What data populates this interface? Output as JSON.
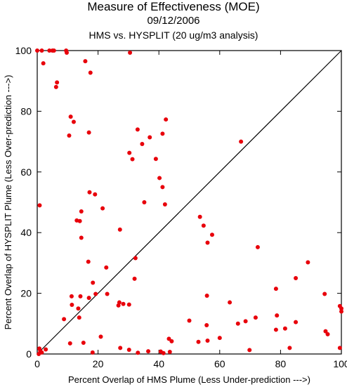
{
  "chart_data": {
    "type": "scatter",
    "title": "Measure of Effectiveness (MOE)",
    "subtitle": "09/12/2006",
    "subtitle2": "HMS vs. HYSPLIT  (20 ug/m3 analysis)",
    "xlabel": "Percent Overlap of HMS Plume (Less Under-prediction --->)",
    "ylabel": "Percent Overlap of HYSPLIT Plume (Less Over-prediction --->)",
    "xlim": [
      0,
      100
    ],
    "ylim": [
      0,
      100
    ],
    "xticks": [
      0,
      20,
      40,
      60,
      80,
      100
    ],
    "yticks": [
      0,
      20,
      40,
      60,
      80,
      100
    ],
    "xtick_labels": [
      "0",
      "20",
      "40",
      "60",
      "80",
      "100"
    ],
    "ytick_labels": [
      "0",
      "20",
      "40",
      "60",
      "80",
      "100"
    ],
    "grid": false,
    "diagonal_line": true,
    "marker_color": "#e8000b",
    "points": [
      [
        0,
        100
      ],
      [
        1.5,
        100
      ],
      [
        4,
        100
      ],
      [
        5,
        100
      ],
      [
        5.5,
        100
      ],
      [
        9.5,
        100
      ],
      [
        9.7,
        99.3
      ],
      [
        30.5,
        99.3
      ],
      [
        2,
        95.8
      ],
      [
        15.8,
        96.5
      ],
      [
        17.5,
        92.7
      ],
      [
        6.5,
        89.5
      ],
      [
        6.2,
        88
      ],
      [
        11,
        78.2
      ],
      [
        12,
        76.5
      ],
      [
        10.5,
        72
      ],
      [
        17,
        73
      ],
      [
        33,
        74
      ],
      [
        42.3,
        77.3
      ],
      [
        37,
        71.4
      ],
      [
        41.2,
        72.6
      ],
      [
        34.5,
        69.2
      ],
      [
        39,
        64.3
      ],
      [
        30.3,
        66.3
      ],
      [
        31.3,
        64.2
      ],
      [
        67,
        70
      ],
      [
        40.2,
        58
      ],
      [
        41.2,
        55
      ],
      [
        17.2,
        53.3
      ],
      [
        19,
        52.6
      ],
      [
        0.8,
        49
      ],
      [
        35.2,
        50
      ],
      [
        42,
        49.3
      ],
      [
        21.5,
        48
      ],
      [
        14.5,
        47
      ],
      [
        13,
        44
      ],
      [
        14,
        43.8
      ],
      [
        53.5,
        45.2
      ],
      [
        54.7,
        42.3
      ],
      [
        14.5,
        38.3
      ],
      [
        27.2,
        41
      ],
      [
        57.5,
        39.3
      ],
      [
        56,
        36.7
      ],
      [
        72.5,
        35.2
      ],
      [
        32.3,
        31.6
      ],
      [
        16.8,
        30.4
      ],
      [
        22.7,
        28.5
      ],
      [
        89,
        30.2
      ],
      [
        18.3,
        23.5
      ],
      [
        32,
        24.8
      ],
      [
        85,
        25
      ],
      [
        78.5,
        21.5
      ],
      [
        11.3,
        19
      ],
      [
        14.2,
        19
      ],
      [
        17,
        18.5
      ],
      [
        19.2,
        19.8
      ],
      [
        23,
        19.8
      ],
      [
        55.8,
        19.2
      ],
      [
        71.8,
        12
      ],
      [
        94.5,
        19.8
      ],
      [
        11.4,
        16.2
      ],
      [
        13.5,
        15
      ],
      [
        26.7,
        16
      ],
      [
        27,
        17
      ],
      [
        28.3,
        16.5
      ],
      [
        30.2,
        16.3
      ],
      [
        63.3,
        17
      ],
      [
        99.5,
        15.8
      ],
      [
        100,
        15
      ],
      [
        100,
        14
      ],
      [
        13.8,
        12
      ],
      [
        8.8,
        11.5
      ],
      [
        50,
        11
      ],
      [
        78.8,
        12.7
      ],
      [
        68.5,
        10.8
      ],
      [
        66,
        10
      ],
      [
        55.7,
        9.5
      ],
      [
        85,
        10.5
      ],
      [
        78.5,
        8
      ],
      [
        81.5,
        8.4
      ],
      [
        94.8,
        7.5
      ],
      [
        95.5,
        6.5
      ],
      [
        20.9,
        5.7
      ],
      [
        43.3,
        5
      ],
      [
        60,
        5.3
      ],
      [
        56,
        4.4
      ],
      [
        53,
        4
      ],
      [
        15.2,
        3.7
      ],
      [
        10.8,
        3.5
      ],
      [
        44.2,
        4.2
      ],
      [
        27.3,
        2
      ],
      [
        30.2,
        1.4
      ],
      [
        36.5,
        0.9
      ],
      [
        33.1,
        0.4
      ],
      [
        40.6,
        0.8
      ],
      [
        41.5,
        0.3
      ],
      [
        43.6,
        0.7
      ],
      [
        18.2,
        0.5
      ],
      [
        0.7,
        1.8
      ],
      [
        2.8,
        1.5
      ],
      [
        1,
        1
      ],
      [
        1.5,
        0.5
      ],
      [
        0.5,
        0
      ],
      [
        83,
        2
      ],
      [
        69.8,
        1.3
      ],
      [
        99.5,
        2
      ]
    ]
  }
}
